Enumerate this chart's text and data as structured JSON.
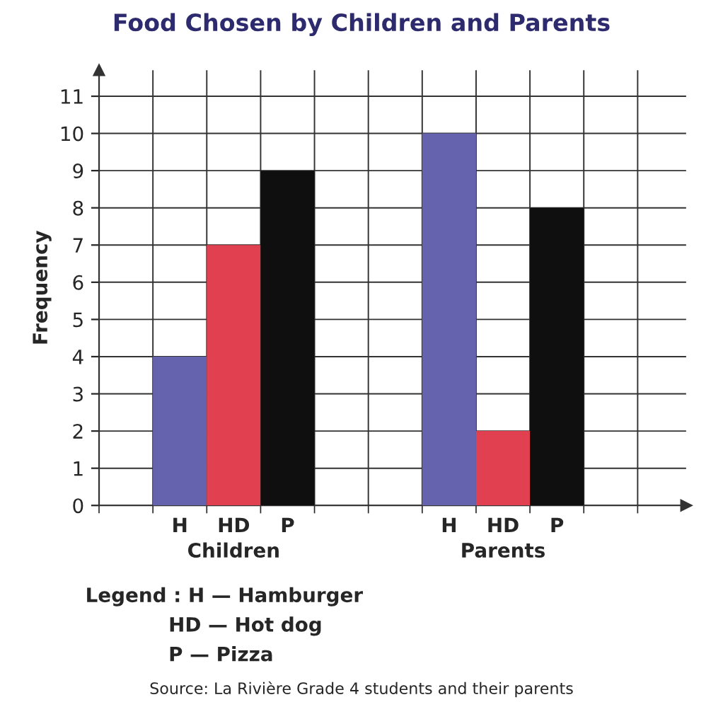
{
  "chart_data": {
    "type": "bar",
    "title": "Food Chosen by Children and Parents",
    "ylabel": "Frequency",
    "categories": [
      null,
      "H",
      "HD",
      "P",
      null,
      null,
      "H",
      "HD",
      "P",
      null,
      null
    ],
    "values": [
      null,
      4,
      7,
      9,
      null,
      null,
      10,
      2,
      8,
      null,
      null
    ],
    "colors": [
      "#6563ad",
      "#6563ad",
      "#e0404f",
      "#0f0f0f",
      "#6563ad",
      "#6563ad",
      "#6563ad",
      "#e0404f",
      "#0f0f0f",
      "#6563ad",
      "#6563ad"
    ],
    "ylim": [
      0,
      11.7
    ],
    "yticks": [
      0,
      1,
      2,
      3,
      4,
      5,
      6,
      7,
      8,
      9,
      10,
      11
    ],
    "grid": true,
    "annotations": [
      "Children",
      "Parents",
      "Legend : H — Hamburger",
      "HD — Hot dog",
      "P — Pizza",
      "Source: La Rivière Grade 4 students and their parents"
    ]
  }
}
